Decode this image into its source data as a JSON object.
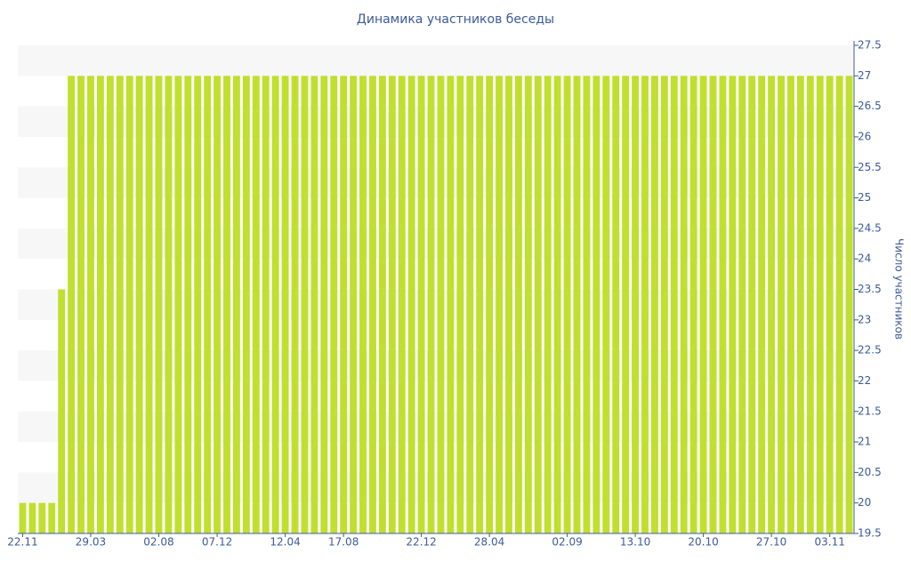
{
  "chart_data": {
    "type": "bar",
    "title": "Динамика участников беседы",
    "y_axis_label": "Число участников",
    "categories": [
      "22.11",
      null,
      null,
      null,
      null,
      null,
      null,
      "29.03",
      null,
      null,
      null,
      null,
      null,
      null,
      "02.08",
      null,
      null,
      null,
      null,
      null,
      "07.12",
      null,
      null,
      null,
      null,
      null,
      null,
      "12.04",
      null,
      null,
      null,
      null,
      null,
      "17.08",
      null,
      null,
      null,
      null,
      null,
      null,
      null,
      "22.12",
      null,
      null,
      null,
      null,
      null,
      null,
      "28.04",
      null,
      null,
      null,
      null,
      null,
      null,
      null,
      "02.09",
      null,
      null,
      null,
      null,
      null,
      null,
      "13.10",
      null,
      null,
      null,
      null,
      null,
      null,
      "20.10",
      null,
      null,
      null,
      null,
      null,
      null,
      "27.10",
      null,
      null,
      null,
      null,
      null,
      "03.11",
      null,
      null
    ],
    "values": [
      20,
      20,
      20,
      20,
      23.5,
      27,
      27,
      27,
      27,
      27,
      27,
      27,
      27,
      27,
      27,
      27,
      27,
      27,
      27,
      27,
      27,
      27,
      27,
      27,
      27,
      27,
      27,
      27,
      27,
      27,
      27,
      27,
      27,
      27,
      27,
      27,
      27,
      27,
      27,
      27,
      27,
      27,
      27,
      27,
      27,
      27,
      27,
      27,
      27,
      27,
      27,
      27,
      27,
      27,
      27,
      27,
      27,
      27,
      27,
      27,
      27,
      27,
      27,
      27,
      27,
      27,
      27,
      27,
      27,
      27,
      27,
      27,
      27,
      27,
      27,
      27,
      27,
      27,
      27,
      27,
      27,
      27,
      27,
      27,
      27,
      27
    ],
    "color": "#c0df2e",
    "ylim": [
      19.5,
      27.5
    ],
    "yticks": [
      19.5,
      20,
      20.5,
      21,
      21.5,
      22,
      22.5,
      23,
      23.5,
      24,
      24.5,
      25,
      25.5,
      26,
      26.5,
      27,
      27.5
    ],
    "y_axis_side": "right",
    "banded_grid": true
  }
}
